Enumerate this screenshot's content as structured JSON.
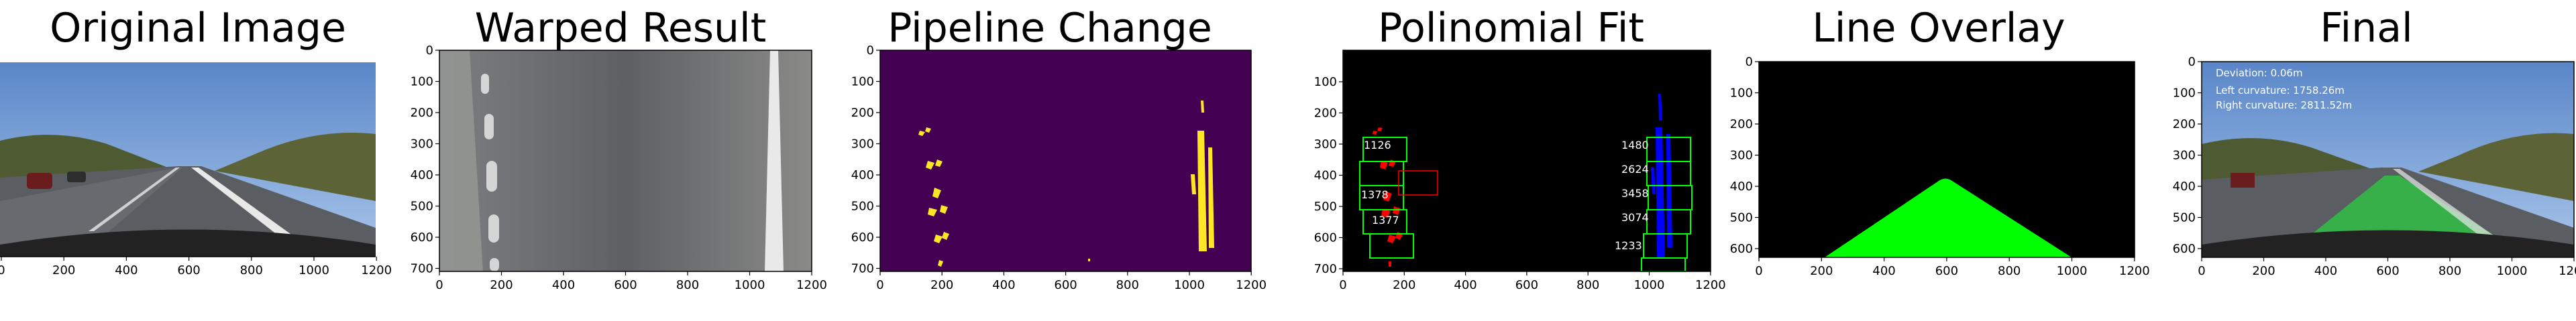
{
  "panels": [
    {
      "title": "Original Image",
      "x_ticks": [
        "0",
        "200",
        "400",
        "600",
        "800",
        "1000",
        "1200"
      ],
      "y_ticks": [],
      "image": "road-photo"
    },
    {
      "title": "Warped Result",
      "x_ticks": [
        "0",
        "200",
        "400",
        "600",
        "800",
        "1000",
        "1200"
      ],
      "y_ticks": [
        "0",
        "100",
        "200",
        "300",
        "400",
        "500",
        "600",
        "700"
      ],
      "image": "warped-grayscale-road"
    },
    {
      "title": "Pipeline Change",
      "x_ticks": [
        "0",
        "200",
        "400",
        "600",
        "800",
        "1000",
        "1200"
      ],
      "y_ticks": [
        "0",
        "100",
        "200",
        "300",
        "400",
        "500",
        "600",
        "700"
      ],
      "image": "binary-lane-mask"
    },
    {
      "title": "Polinomial Fit",
      "x_ticks": [
        "0",
        "200",
        "400",
        "600",
        "800",
        "1000",
        "1200"
      ],
      "y_ticks": [
        "100",
        "200",
        "300",
        "400",
        "500",
        "600",
        "700"
      ],
      "image": "sliding-window-fit",
      "window_labels_left": [
        "1126",
        "1378",
        "1377"
      ],
      "window_labels_right": [
        "1480",
        "2624",
        "3458",
        "3074",
        "1233"
      ]
    },
    {
      "title": "Line Overlay",
      "x_ticks": [
        "0",
        "200",
        "400",
        "600",
        "800",
        "1000",
        "1200"
      ],
      "y_ticks": [
        "0",
        "100",
        "200",
        "300",
        "400",
        "500",
        "600"
      ],
      "image": "green-lane-polygon"
    },
    {
      "title": "Final",
      "x_ticks": [
        "0",
        "200",
        "400",
        "600",
        "800",
        "1000",
        "1200"
      ],
      "y_ticks": [
        "0",
        "100",
        "200",
        "300",
        "400",
        "500",
        "600"
      ],
      "image": "road-with-lane-overlay",
      "overlay_text": [
        "Deviation: 0.06m",
        "Left curvature: 1758.26m",
        "Right curvature: 2811.52m"
      ]
    }
  ],
  "colors": {
    "mask_background": "#440154",
    "mask_lines": "#fde725",
    "lane_green": "#00ff00",
    "window_green": "#00ff00",
    "left_pixels": "#ff0000",
    "right_pixels": "#0000ff"
  }
}
